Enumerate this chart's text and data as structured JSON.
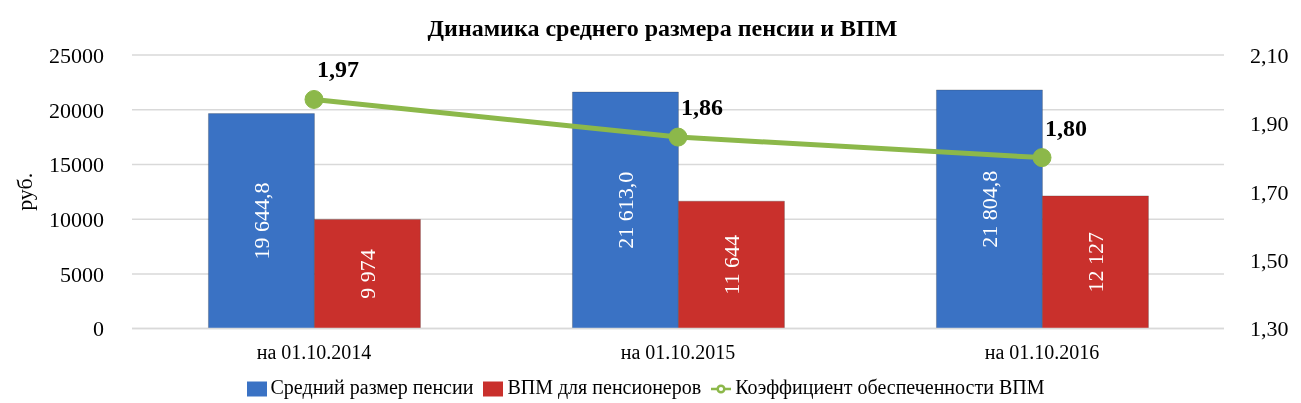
{
  "chart_data": {
    "type": "bar",
    "title": "Динамика среднего размера пенсии и ВПМ",
    "ylabel": "руб.",
    "categories": [
      "на 01.10.2014",
      "на 01.10.2015",
      "на 01.10.2016"
    ],
    "series": [
      {
        "name": "Средний размер пенсии",
        "color": "#3a72c4",
        "values": [
          19644.8,
          21613.0,
          21804.8
        ],
        "value_labels": [
          "19 644,8",
          "21 613,0",
          "21 804,8"
        ]
      },
      {
        "name": "ВПМ для пенсионеров",
        "color": "#c9302c",
        "values": [
          9974,
          11644,
          12127
        ],
        "value_labels": [
          "9 974",
          "11 644",
          "12 127"
        ]
      },
      {
        "name": "Коэффициент обеспеченности ВПМ",
        "type": "line",
        "axis": "y2",
        "color": "#8cb84a",
        "values": [
          1.97,
          1.86,
          1.8
        ],
        "value_labels": [
          "1,97",
          "1,86",
          "1,80"
        ]
      }
    ],
    "ylim": [
      0,
      25000
    ],
    "yticks": [
      0,
      5000,
      10000,
      15000,
      20000,
      25000
    ],
    "y2lim": [
      1.3,
      2.1
    ],
    "y2ticks": [
      {
        "value": 1.3,
        "label": "1,30"
      },
      {
        "value": 1.5,
        "label": "1,50"
      },
      {
        "value": 1.7,
        "label": "1,70"
      },
      {
        "value": 1.9,
        "label": "1,90"
      },
      {
        "value": 2.1,
        "label": "2,10"
      }
    ],
    "grid": "y",
    "legend": "bottom",
    "marker": "circle"
  }
}
